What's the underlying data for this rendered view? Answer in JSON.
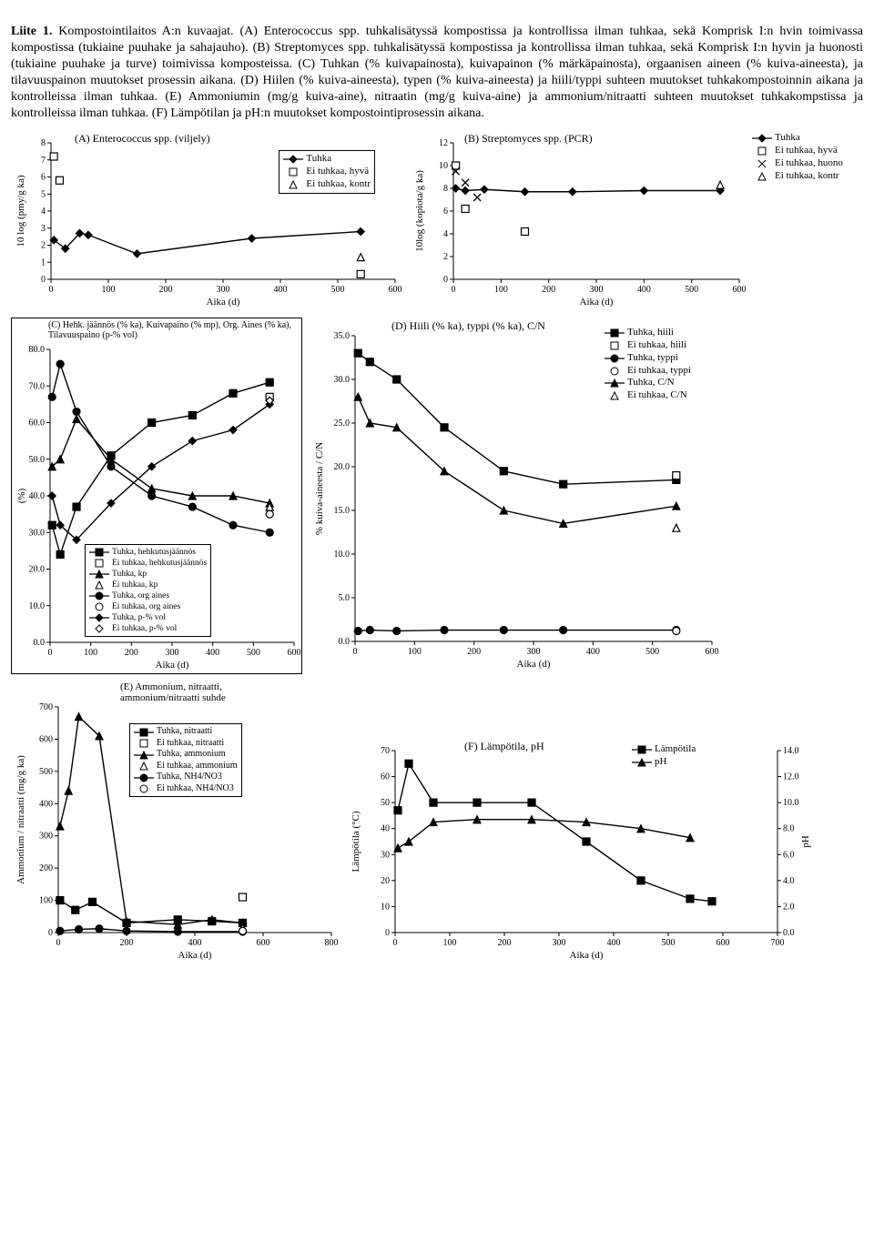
{
  "caption": {
    "lead": "Liite 1.",
    "text": " Kompostointilaitos A:n kuvaajat. (A) Enterococcus spp. tuhkalisätyssä kompostissa ja kontrollissa ilman tuhkaa, sekä Komprisk I:n hvin toimivassa kompostissa (tukiaine puuhake ja sahajauho). (B) Streptomyces spp. tuhkalisätyssä kompostissa ja kontrollissa ilman tuhkaa, sekä Komprisk I:n hyvin ja huonosti (tukiaine puuhake ja turve) toimivissa komposteissa. (C) Tuhkan (% kuivapainosta), kuivapainon (% märkäpainosta), orgaanisen aineen (% kuiva-aineesta), ja tilavuuspainon muutokset prosessin aikana. (D) Hiilen (% kuiva-aineesta), typen (% kuiva-aineesta) ja hiili/typpi suhteen muutokset tuhkakompostoinnin aikana ja kontrolleissa ilman tuhkaa. (E) Ammoniumin (mg/g kuiva-aine), nitraatin (mg/g kuiva-aine) ja ammonium/nitraatti suhteen muutokset tuhkakompstissa ja kontrolleissa ilman tuhkaa. (F) Lämpötilan ja pH:n muutokset kompostointiprosessin aikana."
  },
  "common": {
    "x_label": "Aika (d)",
    "tick_font": 10,
    "axis_font": 11,
    "line_color": "#000000",
    "grid_color": "#dddddd",
    "bg": "#ffffff"
  },
  "chartA": {
    "title": "(A) Enterococcus spp. (viljely)",
    "y_label": "10 log (pmy/g ka)",
    "xlim": [
      0,
      600
    ],
    "xtick_step": 100,
    "ylim": [
      0,
      8
    ],
    "ytick_step": 1,
    "series": [
      {
        "name": "Tuhka",
        "marker": "diamond",
        "fill": true,
        "line": true,
        "pts": [
          [
            5,
            2.3
          ],
          [
            25,
            1.8
          ],
          [
            50,
            2.7
          ],
          [
            65,
            2.6
          ],
          [
            150,
            1.5
          ],
          [
            350,
            2.4
          ],
          [
            540,
            2.8
          ]
        ]
      },
      {
        "name": "Ei tuhkaa, hyvä",
        "marker": "square",
        "fill": false,
        "line": false,
        "pts": [
          [
            5,
            7.2
          ],
          [
            15,
            5.8
          ],
          [
            540,
            0.3
          ]
        ]
      },
      {
        "name": "Ei tuhkaa, kontr",
        "marker": "triangle",
        "fill": false,
        "line": false,
        "pts": [
          [
            540,
            1.3
          ]
        ]
      }
    ],
    "legend_pos": "inside-top-right"
  },
  "chartB": {
    "title": "(B) Streptomyces spp. (PCR)",
    "y_label": "10log (kopiota/g ka)",
    "xlim": [
      0,
      600
    ],
    "xtick_step": 100,
    "ylim": [
      0,
      12
    ],
    "ytick_step": 2,
    "series": [
      {
        "name": "Tuhka",
        "marker": "diamond",
        "fill": true,
        "line": true,
        "pts": [
          [
            5,
            8.0
          ],
          [
            25,
            7.8
          ],
          [
            65,
            7.9
          ],
          [
            150,
            7.7
          ],
          [
            250,
            7.7
          ],
          [
            400,
            7.8
          ],
          [
            560,
            7.8
          ]
        ]
      },
      {
        "name": "Ei tuhkaa, hyvä",
        "marker": "square",
        "fill": false,
        "line": false,
        "pts": [
          [
            5,
            10.0
          ],
          [
            25,
            6.2
          ],
          [
            150,
            4.2
          ]
        ]
      },
      {
        "name": "Ei tuhkaa, huono",
        "marker": "x",
        "fill": false,
        "line": false,
        "pts": [
          [
            5,
            9.5
          ],
          [
            25,
            8.5
          ],
          [
            50,
            7.2
          ]
        ]
      },
      {
        "name": "Ei tuhkaa, kontr",
        "marker": "triangle",
        "fill": false,
        "line": false,
        "pts": [
          [
            560,
            8.3
          ]
        ]
      }
    ],
    "legend_pos": "outside-right"
  },
  "chartC": {
    "title": "(C) Hehk. jäännös (% ka), Kuivapaino (% mp), Org. Aines (% ka), Tilavuuspaino (p-% vol)",
    "y_label": "(%)",
    "xlim": [
      0,
      600
    ],
    "xtick_step": 100,
    "ylim": [
      0,
      80
    ],
    "ytick_step": 10,
    "series": [
      {
        "name": "Tuhka, hehkutusjäännös",
        "marker": "square",
        "fill": true,
        "line": true,
        "pts": [
          [
            5,
            32
          ],
          [
            25,
            24
          ],
          [
            65,
            37
          ],
          [
            150,
            51
          ],
          [
            250,
            60
          ],
          [
            350,
            62
          ],
          [
            450,
            68
          ],
          [
            540,
            71
          ]
        ]
      },
      {
        "name": "Ei tuhkaa, hehkutusjäännös",
        "marker": "square",
        "fill": false,
        "line": false,
        "pts": [
          [
            540,
            67
          ]
        ]
      },
      {
        "name": "Tuhka, kp",
        "marker": "triangle",
        "fill": true,
        "line": true,
        "pts": [
          [
            5,
            48
          ],
          [
            25,
            50
          ],
          [
            65,
            61
          ],
          [
            150,
            50
          ],
          [
            250,
            42
          ],
          [
            350,
            40
          ],
          [
            450,
            40
          ],
          [
            540,
            38
          ]
        ]
      },
      {
        "name": "Ei tuhkaa, kp",
        "marker": "triangle",
        "fill": false,
        "line": false,
        "pts": [
          [
            540,
            37
          ]
        ]
      },
      {
        "name": "Tuhka, org aines",
        "marker": "circle",
        "fill": true,
        "line": true,
        "pts": [
          [
            5,
            67
          ],
          [
            25,
            76
          ],
          [
            65,
            63
          ],
          [
            150,
            48
          ],
          [
            250,
            40
          ],
          [
            350,
            37
          ],
          [
            450,
            32
          ],
          [
            540,
            30
          ]
        ]
      },
      {
        "name": "Ei tuhkaa, org aines",
        "marker": "circle",
        "fill": false,
        "line": false,
        "pts": [
          [
            540,
            35
          ]
        ]
      },
      {
        "name": "Tuhka, p-% vol",
        "marker": "diamond",
        "fill": true,
        "line": true,
        "pts": [
          [
            5,
            40
          ],
          [
            25,
            32
          ],
          [
            65,
            28
          ],
          [
            150,
            38
          ],
          [
            250,
            48
          ],
          [
            350,
            55
          ],
          [
            450,
            58
          ],
          [
            540,
            65
          ]
        ]
      },
      {
        "name": "Ei tuhkaa, p-% vol",
        "marker": "diamond",
        "fill": false,
        "line": false,
        "pts": [
          [
            540,
            66
          ]
        ]
      }
    ]
  },
  "chartD": {
    "title": "(D) Hiili (% ka), typpi (% ka), C/N",
    "y_label": "% kuiva-aineesta / C/N",
    "xlim": [
      0,
      600
    ],
    "xtick_step": 100,
    "ylim": [
      0,
      35
    ],
    "ytick_step": 5,
    "series": [
      {
        "name": "Tuhka, hiili",
        "marker": "square",
        "fill": true,
        "line": true,
        "pts": [
          [
            5,
            33
          ],
          [
            25,
            32
          ],
          [
            70,
            30
          ],
          [
            150,
            24.5
          ],
          [
            250,
            19.5
          ],
          [
            350,
            18
          ],
          [
            540,
            18.5
          ]
        ]
      },
      {
        "name": "Ei tuhkaa, hiili",
        "marker": "square",
        "fill": false,
        "line": false,
        "pts": [
          [
            540,
            19
          ]
        ]
      },
      {
        "name": "Tuhka, typpi",
        "marker": "circle",
        "fill": true,
        "line": true,
        "pts": [
          [
            5,
            1.2
          ],
          [
            25,
            1.3
          ],
          [
            70,
            1.2
          ],
          [
            150,
            1.3
          ],
          [
            250,
            1.3
          ],
          [
            350,
            1.3
          ],
          [
            540,
            1.3
          ]
        ]
      },
      {
        "name": "Ei tuhkaa, typpi",
        "marker": "circle",
        "fill": false,
        "line": false,
        "pts": [
          [
            540,
            1.2
          ]
        ]
      },
      {
        "name": "Tuhka, C/N",
        "marker": "triangle",
        "fill": true,
        "line": true,
        "pts": [
          [
            5,
            28
          ],
          [
            25,
            25
          ],
          [
            70,
            24.5
          ],
          [
            150,
            19.5
          ],
          [
            250,
            15
          ],
          [
            350,
            13.5
          ],
          [
            540,
            15.5
          ]
        ]
      },
      {
        "name": "Ei tuhkaa, C/N",
        "marker": "triangle",
        "fill": false,
        "line": false,
        "pts": [
          [
            540,
            13
          ]
        ]
      }
    ]
  },
  "chartE": {
    "title": "(E) Ammonium, nitraatti, ammonium/nitraatti suhde",
    "y_label": "Ammonium / nitraatti (mg/g ka)",
    "xlim": [
      0,
      800
    ],
    "xtick_step": 200,
    "ylim": [
      0,
      700
    ],
    "ytick_step": 100,
    "series": [
      {
        "name": "Tuhka, nitraatti",
        "marker": "square",
        "fill": true,
        "line": true,
        "pts": [
          [
            5,
            100
          ],
          [
            50,
            70
          ],
          [
            100,
            95
          ],
          [
            200,
            30
          ],
          [
            350,
            40
          ],
          [
            450,
            35
          ],
          [
            540,
            30
          ]
        ]
      },
      {
        "name": "Ei tuhkaa, nitraatti",
        "marker": "square",
        "fill": false,
        "line": false,
        "pts": [
          [
            540,
            110
          ]
        ]
      },
      {
        "name": "Tuhka, ammonium",
        "marker": "triangle",
        "fill": true,
        "line": true,
        "pts": [
          [
            5,
            330
          ],
          [
            30,
            440
          ],
          [
            60,
            670
          ],
          [
            120,
            610
          ],
          [
            200,
            35
          ],
          [
            350,
            25
          ],
          [
            450,
            40
          ],
          [
            540,
            30
          ]
        ]
      },
      {
        "name": "Ei tuhkaa, ammonium",
        "marker": "triangle",
        "fill": false,
        "line": false,
        "pts": [
          [
            540,
            15
          ]
        ]
      },
      {
        "name": "Tuhka, NH4/NO3",
        "marker": "circle",
        "fill": true,
        "line": true,
        "pts": [
          [
            5,
            5
          ],
          [
            60,
            10
          ],
          [
            120,
            12
          ],
          [
            200,
            5
          ],
          [
            350,
            3
          ],
          [
            540,
            3
          ]
        ]
      },
      {
        "name": "Ei tuhkaa, NH4/NO3",
        "marker": "circle",
        "fill": false,
        "line": false,
        "pts": [
          [
            540,
            5
          ]
        ]
      }
    ]
  },
  "chartF": {
    "title": "(F) Lämpötila, pH",
    "y1_label": "Lämpötila (°C)",
    "y2_label": "pH",
    "xlim": [
      0,
      700
    ],
    "xtick_step": 100,
    "y1lim": [
      0,
      70
    ],
    "y1tick_step": 10,
    "y2lim": [
      0,
      14
    ],
    "y2tick_step": 2,
    "series": [
      {
        "name": "Lämpötila",
        "axis": 1,
        "marker": "square",
        "fill": true,
        "line": true,
        "pts": [
          [
            5,
            47
          ],
          [
            25,
            65
          ],
          [
            70,
            50
          ],
          [
            150,
            50
          ],
          [
            250,
            50
          ],
          [
            350,
            35
          ],
          [
            450,
            20
          ],
          [
            540,
            13
          ],
          [
            580,
            12
          ]
        ]
      },
      {
        "name": "pH",
        "axis": 2,
        "marker": "triangle",
        "fill": true,
        "line": true,
        "pts": [
          [
            5,
            6.5
          ],
          [
            25,
            7.0
          ],
          [
            70,
            8.5
          ],
          [
            150,
            8.7
          ],
          [
            250,
            8.7
          ],
          [
            350,
            8.5
          ],
          [
            450,
            8.0
          ],
          [
            540,
            7.3
          ]
        ]
      }
    ]
  }
}
